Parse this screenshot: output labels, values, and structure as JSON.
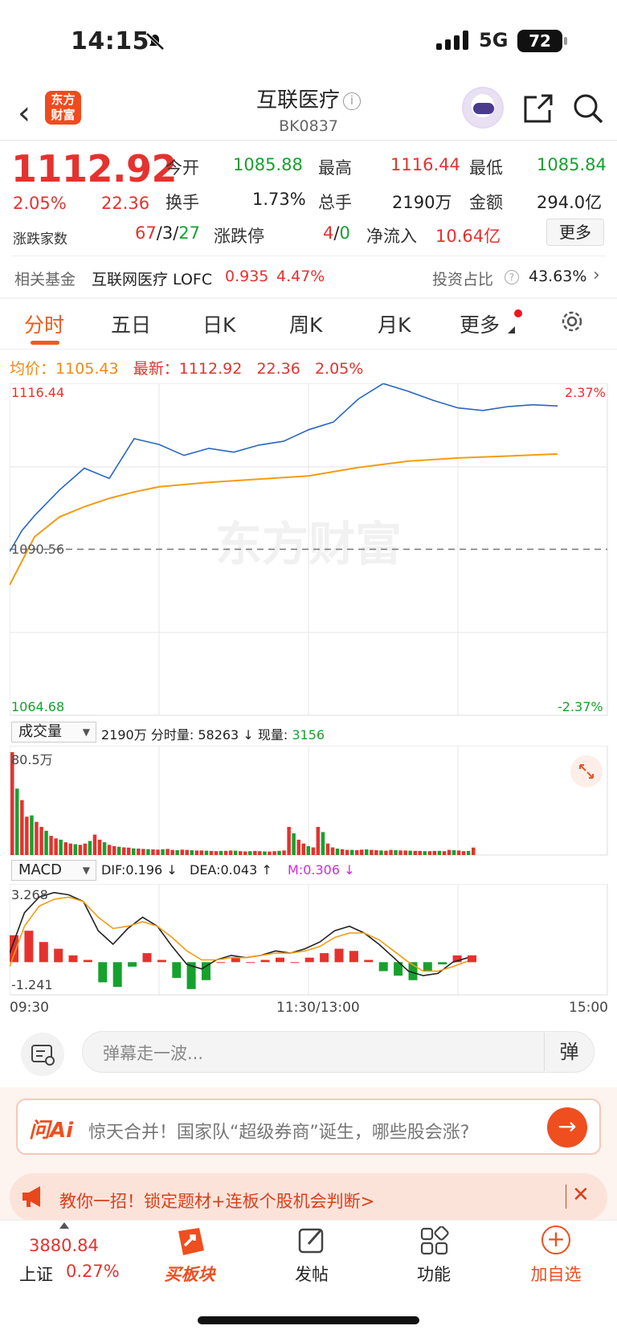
{
  "status": {
    "time": "14:15",
    "network": "5G",
    "battery": "72"
  },
  "header": {
    "logo_line1": "东方",
    "logo_line2": "财富",
    "title": "互联医疗",
    "info_mark": "i",
    "code": "BK0837",
    "back_glyph": "‹"
  },
  "quote": {
    "price": "1112.92",
    "change_pct": "2.05%",
    "change": "22.36",
    "open_label": "今开",
    "open": "1085.88",
    "high_label": "最高",
    "high": "1116.44",
    "low_label": "最低",
    "low": "1085.84",
    "turnover_label": "换手",
    "turnover": "1.73%",
    "volume_label": "总手",
    "volume": "2190万",
    "amount_label": "金额",
    "amount": "294.0亿",
    "breadth_label": "涨跌家数",
    "breadth_up": "67",
    "breadth_flat": "3",
    "breadth_down": "27",
    "slash": "/",
    "limit_label": "涨跌停",
    "limit_up": "4",
    "limit_down": "0",
    "netflow_label": "净流入",
    "netflow": "10.64亿",
    "more_button": "更多"
  },
  "fund": {
    "label": "相关基金",
    "name": "互联网医疗 LOFC",
    "price": "0.935",
    "pct": "4.47%",
    "ratio_label": "投资占比",
    "ratio": "43.63%",
    "help": "?",
    "chevron": "›"
  },
  "tabs": [
    "分时",
    "五日",
    "日K",
    "周K",
    "月K",
    "更多"
  ],
  "intraday": {
    "avg_label": "均价：",
    "avg": "1105.43",
    "latest_label": "最新：",
    "latest": "1112.92",
    "latest_change": "22.36",
    "latest_pct": "2.05%",
    "y_top": "1116.44",
    "y_mid": "1090.56",
    "y_bottom": "1064.68",
    "pct_top": "2.37%",
    "pct_bottom": "-2.37%",
    "watermark": "东方财富"
  },
  "volume": {
    "dropdown": "成交量",
    "total": "2190万",
    "per_minute_label": "分时量:",
    "per_minute": "58263",
    "down_arrow": "↓",
    "current_label": "现量:",
    "current": "3156",
    "max_label": "80.5万"
  },
  "macd": {
    "dropdown": "MACD",
    "dif": "DIF:0.196 ↓",
    "dea": "DEA:0.043 ↑",
    "m": "M:0.306 ↓",
    "top": "3.268",
    "bottom": "-1.241"
  },
  "time_axis": {
    "start": "09:30",
    "mid": "11:30/13:00",
    "end": "15:00"
  },
  "danmaku": {
    "placeholder": "弹幕走一波...",
    "button": "弹"
  },
  "ai": {
    "logo": "问Ai",
    "text": "惊天合并！国家队“超级券商”诞生，哪些股会涨?",
    "go": "→"
  },
  "tip": {
    "text": "教你一招！锁定题材+连板个股机会判断>",
    "close": "✕"
  },
  "nav": {
    "index_value": "3880.84",
    "index_name": "上证",
    "index_pct": "0.27%",
    "buy_sector": "买板块",
    "post": "发帖",
    "functions": "功能",
    "add_watch": "加自选",
    "plus": "+"
  },
  "chart_data": [
    {
      "type": "line",
      "title": "",
      "x_ticks": [
        "09:30",
        "11:30/13:00",
        "15:00"
      ],
      "ylim": [
        1064.68,
        1116.44
      ],
      "series": [
        {
          "name": "最新",
          "color": "#2a66c0",
          "x": [
            0,
            5,
            10,
            20,
            30,
            40,
            50,
            60,
            70,
            80,
            90,
            100,
            110,
            120,
            130,
            140,
            150,
            160,
            170,
            180,
            190,
            200,
            210,
            220
          ],
          "y": [
            1090.2,
            1093.5,
            1095.8,
            1099.8,
            1103.2,
            1101.6,
            1107.8,
            1106.9,
            1105.2,
            1106.3,
            1105.7,
            1106.8,
            1107.4,
            1109.2,
            1110.4,
            1114.0,
            1116.4,
            1115.2,
            1113.8,
            1112.6,
            1112.2,
            1112.8,
            1113.1,
            1112.9
          ]
        },
        {
          "name": "均价",
          "color": "#f39c12",
          "x": [
            0,
            10,
            20,
            30,
            40,
            50,
            60,
            80,
            100,
            120,
            140,
            160,
            180,
            200,
            220
          ],
          "y": [
            1085.0,
            1092.5,
            1095.6,
            1097.2,
            1098.5,
            1099.5,
            1100.3,
            1101.0,
            1101.5,
            1102.0,
            1103.3,
            1104.3,
            1104.8,
            1105.1,
            1105.43
          ]
        }
      ],
      "reference_line": 1090.56
    },
    {
      "type": "bar",
      "title": "成交量",
      "ylim": [
        0,
        805000
      ],
      "values": [
        805000,
        520000,
        430000,
        300000,
        310000,
        260000,
        220000,
        190000,
        150000,
        130000,
        120000,
        100000,
        90000,
        85000,
        80000,
        90000,
        110000,
        160000,
        120000,
        100000,
        80000,
        70000,
        65000,
        60000,
        58000,
        52000,
        50000,
        48000,
        46000,
        44000,
        42000,
        45000,
        48000,
        40000,
        38000,
        42000,
        40000,
        38000,
        35000,
        36000,
        34000,
        32000,
        30000,
        32000,
        33000,
        35000,
        34000,
        30000,
        28000,
        30000,
        32000,
        30000,
        28000,
        27000,
        30000,
        33000,
        36000,
        220000,
        170000,
        120000,
        90000,
        70000,
        60000,
        220000,
        180000,
        90000,
        60000,
        50000,
        45000,
        40000,
        40000,
        38000,
        42000,
        44000,
        40000,
        38000,
        36000,
        34000,
        40000,
        38000,
        36000,
        35000,
        34000,
        33000,
        32000,
        30000,
        30000,
        32000,
        33000,
        30000,
        40000,
        38000,
        35000,
        30000,
        32000,
        58263
      ]
    },
    {
      "type": "line",
      "title": "MACD",
      "ylim": [
        -1.241,
        3.268
      ],
      "series": [
        {
          "name": "DIF",
          "color": "#222222",
          "y": [
            0.4,
            2.2,
            2.9,
            3.1,
            3.0,
            2.7,
            1.4,
            0.8,
            1.5,
            2.0,
            1.6,
            0.7,
            -0.1,
            -0.3,
            0.1,
            0.3,
            0.2,
            0.3,
            0.5,
            0.4,
            0.6,
            0.9,
            1.4,
            1.6,
            1.3,
            0.8,
            0.2,
            -0.4,
            -0.6,
            -0.5,
            0.0,
            0.196
          ]
        },
        {
          "name": "DEA",
          "color": "#f39c12",
          "y": [
            -0.2,
            1.6,
            2.5,
            2.8,
            2.9,
            2.7,
            2.0,
            1.5,
            1.6,
            1.8,
            1.6,
            1.1,
            0.5,
            0.1,
            0.1,
            0.2,
            0.2,
            0.3,
            0.4,
            0.4,
            0.5,
            0.7,
            1.1,
            1.3,
            1.3,
            1.0,
            0.5,
            0.0,
            -0.4,
            -0.4,
            -0.2,
            0.043
          ]
        }
      ],
      "histogram": [
        1.2,
        1.4,
        0.9,
        0.6,
        0.3,
        0.1,
        -0.9,
        -1.1,
        -0.2,
        0.4,
        0.1,
        -0.7,
        -1.2,
        -0.8,
        0.0,
        0.2,
        0.0,
        0.1,
        0.2,
        0.0,
        0.2,
        0.4,
        0.6,
        0.5,
        0.1,
        -0.4,
        -0.6,
        -0.8,
        -0.4,
        -0.1,
        0.3,
        0.306
      ]
    }
  ]
}
